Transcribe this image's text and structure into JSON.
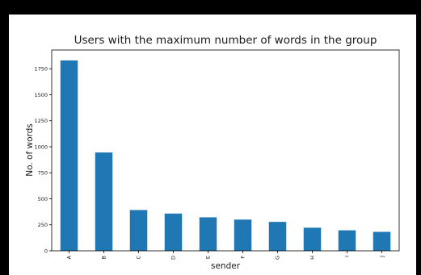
{
  "chart_data": {
    "type": "bar",
    "title": "Users with the maximum number of words in the group",
    "xlabel": "sender",
    "ylabel": "No. of words",
    "categories": [
      "A",
      "B",
      "C",
      "D",
      "E",
      "F",
      "G",
      "H",
      "I",
      "J"
    ],
    "values": [
      1830,
      945,
      392,
      358,
      322,
      300,
      278,
      222,
      197,
      182
    ],
    "ylim": [
      0,
      1930
    ],
    "yticks": [
      0,
      250,
      500,
      750,
      1000,
      1250,
      1500,
      1750
    ],
    "bar_color": "#1f77b4",
    "grid": false
  }
}
